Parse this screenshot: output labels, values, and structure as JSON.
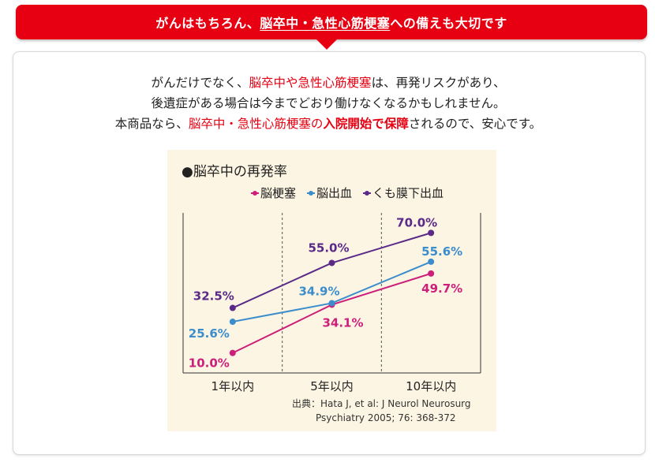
{
  "banner": {
    "part1": "がんはもちろん、",
    "part2": "脳卒中・急性心筋梗塞",
    "part3": "への備えも大切です"
  },
  "intro": {
    "l1a": "がんだけでなく、",
    "l1b": "脳卒中や急性心筋梗塞",
    "l1c": "は、再発リスクがあり、",
    "l2": "後遺症がある場合は今までどおり働けなくなるかもしれません。",
    "l3a": "本商品なら、",
    "l3b": "脳卒中・急性心筋梗塞の",
    "l3c": "入院開始で保障",
    "l3d": "されるので、安心です。"
  },
  "colors": {
    "red": "#e60012",
    "s1": "#cc1f7a",
    "s2": "#3c8dcc",
    "s3": "#5a2a88"
  },
  "chart_data": {
    "type": "line",
    "title": "●脳卒中の再発率",
    "categories": [
      "1年以内",
      "5年以内",
      "10年以内"
    ],
    "series": [
      {
        "name": "脳梗塞",
        "values": [
          10.0,
          34.1,
          49.7
        ],
        "labels": [
          "10.0%",
          "34.1%",
          "49.7%"
        ],
        "color": "#cc1f7a"
      },
      {
        "name": "脳出血",
        "values": [
          25.6,
          34.9,
          55.6
        ],
        "labels": [
          "25.6%",
          "34.9%",
          "55.6%"
        ],
        "color": "#3c8dcc"
      },
      {
        "name": "くも膜下出血",
        "values": [
          32.5,
          55.0,
          70.0
        ],
        "labels": [
          "32.5%",
          "55.0%",
          "70.0%"
        ],
        "color": "#5a2a88"
      }
    ],
    "ylim": [
      0,
      80
    ],
    "source": {
      "line1": "出典：Hata J, et al: J Neurol Neurosurg",
      "line2": "Psychiatry 2005; 76: 368-372"
    }
  }
}
